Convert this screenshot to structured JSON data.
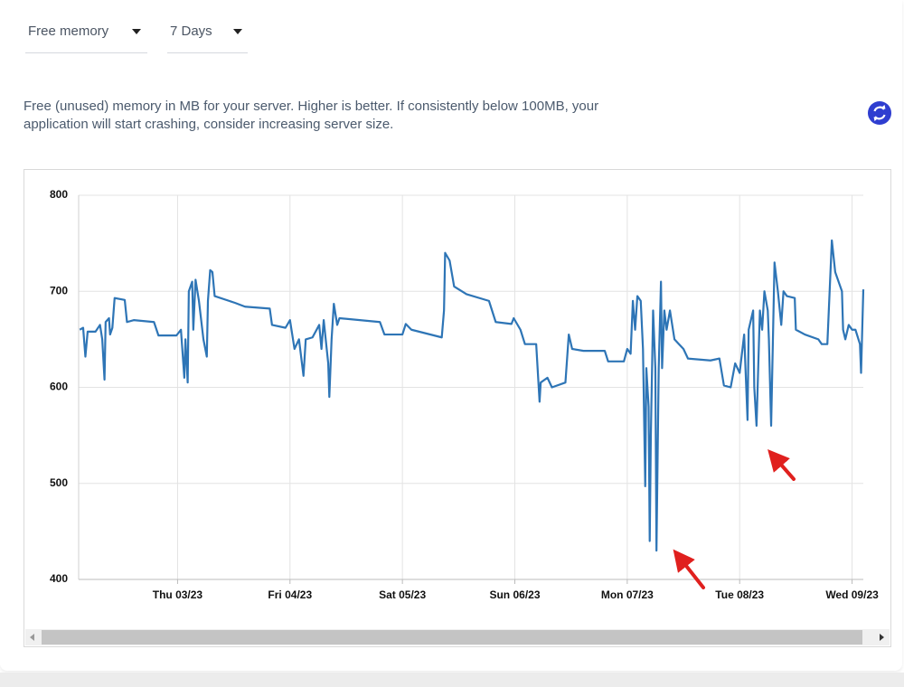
{
  "controls": {
    "metric": "Free memory",
    "range": "7 Days"
  },
  "description": "Free (unused) memory in MB for your server. Higher is better. If consistently below 100MB, your application will start crashing, consider increasing server size.",
  "chart_data": {
    "type": "line",
    "color": "#2e75b6",
    "grid": true,
    "x": [
      2.13,
      2.16,
      2.18,
      2.2,
      2.27,
      2.31,
      2.33,
      2.35,
      2.36,
      2.39,
      2.4,
      2.42,
      2.44,
      2.53,
      2.55,
      2.61,
      2.79,
      2.83,
      2.99,
      3.03,
      3.06,
      3.07,
      3.09,
      3.1,
      3.13,
      3.14,
      3.16,
      3.19,
      3.23,
      3.26,
      3.27,
      3.29,
      3.31,
      3.33,
      3.51,
      3.6,
      3.82,
      3.84,
      3.96,
      4.0,
      4.04,
      4.08,
      4.12,
      4.14,
      4.2,
      4.26,
      4.28,
      4.3,
      4.34,
      4.35,
      4.37,
      4.39,
      4.42,
      4.44,
      4.8,
      4.84,
      5.0,
      5.03,
      5.08,
      5.35,
      5.37,
      5.38,
      5.42,
      5.46,
      5.57,
      5.77,
      5.83,
      5.97,
      5.99,
      6.05,
      6.09,
      6.13,
      6.17,
      6.19,
      6.22,
      6.23,
      6.29,
      6.33,
      6.45,
      6.48,
      6.51,
      6.61,
      6.8,
      6.83,
      6.97,
      7.0,
      7.03,
      7.05,
      7.07,
      7.09,
      7.12,
      7.14,
      7.16,
      7.17,
      7.19,
      7.2,
      7.21,
      7.23,
      7.25,
      7.26,
      7.28,
      7.3,
      7.31,
      7.33,
      7.35,
      7.38,
      7.42,
      7.46,
      7.5,
      7.54,
      7.74,
      7.82,
      7.86,
      7.92,
      7.96,
      8.0,
      8.04,
      8.07,
      8.08,
      8.12,
      8.13,
      8.15,
      8.18,
      8.2,
      8.22,
      8.25,
      8.26,
      8.28,
      8.31,
      8.34,
      8.37,
      8.39,
      8.42,
      8.49,
      8.5,
      8.58,
      8.7,
      8.73,
      8.78,
      8.82,
      8.85,
      8.91,
      8.92,
      8.94,
      8.97,
      9.0,
      9.03,
      9.07,
      9.08,
      9.1
    ],
    "values": [
      660,
      662,
      632,
      658,
      658,
      665,
      650,
      608,
      668,
      672,
      655,
      662,
      693,
      691,
      668,
      670,
      668,
      654,
      654,
      660,
      610,
      650,
      605,
      700,
      710,
      660,
      712,
      690,
      650,
      632,
      690,
      722,
      720,
      695,
      688,
      684,
      682,
      665,
      662,
      670,
      640,
      650,
      612,
      650,
      652,
      665,
      640,
      670,
      625,
      590,
      650,
      687,
      665,
      672,
      668,
      655,
      655,
      666,
      660,
      652,
      680,
      740,
      732,
      705,
      697,
      690,
      668,
      666,
      672,
      660,
      645,
      645,
      645,
      645,
      585,
      605,
      610,
      600,
      605,
      655,
      640,
      638,
      638,
      627,
      627,
      640,
      635,
      690,
      660,
      695,
      690,
      640,
      497,
      620,
      580,
      440,
      550,
      680,
      620,
      430,
      620,
      710,
      620,
      680,
      660,
      680,
      650,
      645,
      640,
      630,
      628,
      630,
      602,
      600,
      625,
      615,
      655,
      566,
      660,
      680,
      600,
      560,
      680,
      660,
      700,
      680,
      650,
      560,
      730,
      700,
      665,
      700,
      695,
      693,
      660,
      655,
      650,
      645,
      645,
      753,
      720,
      700,
      660,
      650,
      665,
      660,
      660,
      645,
      615,
      702
    ],
    "xlim": [
      2.12,
      9.1
    ],
    "xticks": [
      {
        "value": 3,
        "label": "Thu 03/23"
      },
      {
        "value": 4,
        "label": "Fri 04/23"
      },
      {
        "value": 5,
        "label": "Sat 05/23"
      },
      {
        "value": 6,
        "label": "Sun 06/23"
      },
      {
        "value": 7,
        "label": "Mon 07/23"
      },
      {
        "value": 8,
        "label": "Tue 08/23"
      },
      {
        "value": 9,
        "label": "Wed 09/23"
      }
    ],
    "ylim": [
      400,
      800
    ],
    "yticks": [
      400,
      500,
      600,
      700,
      800
    ]
  }
}
